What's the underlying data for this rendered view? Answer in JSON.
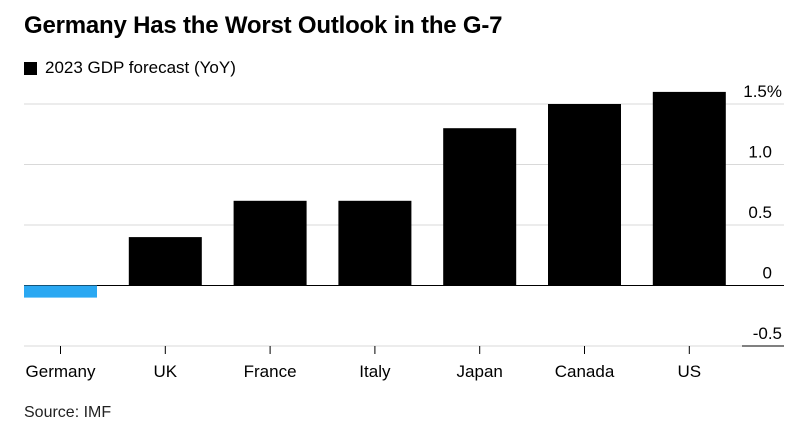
{
  "colors": {
    "bar": "#000000",
    "highlight": "#2aa8f2",
    "grid": "#d9d9d9",
    "zero_line": "#000000"
  },
  "chart_data": {
    "type": "bar",
    "title": "Germany Has the Worst Outlook in the G-7",
    "legend": "2023 GDP forecast (YoY)",
    "source": "Source: IMF",
    "categories": [
      "Germany",
      "UK",
      "France",
      "Italy",
      "Japan",
      "Canada",
      "US"
    ],
    "series": [
      {
        "name": "2023 GDP forecast (YoY)",
        "values": [
          -0.1,
          0.4,
          0.7,
          0.7,
          1.3,
          1.5,
          1.6
        ]
      }
    ],
    "highlight_index": 0,
    "ylim": [
      -0.5,
      1.5
    ],
    "yticks": [
      {
        "value": 1.5,
        "label": "1.5%"
      },
      {
        "value": 1.0,
        "label": "1.0"
      },
      {
        "value": 0.5,
        "label": "0.5"
      },
      {
        "value": 0,
        "label": "0"
      },
      {
        "value": -0.5,
        "label": "-0.5"
      }
    ],
    "xlabel": "",
    "ylabel": ""
  }
}
